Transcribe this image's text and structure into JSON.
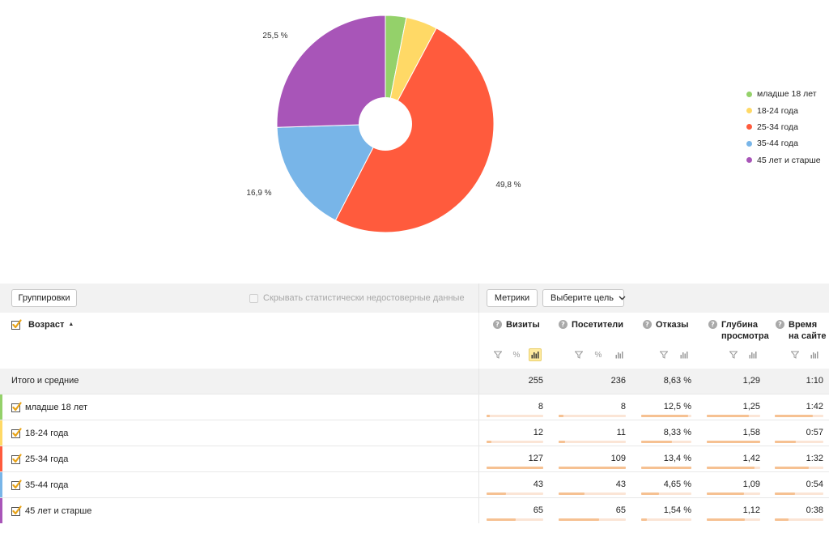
{
  "chart_data": {
    "type": "pie",
    "donut": true,
    "legend_position": "right",
    "categories": [
      "младше 18 лет",
      "18-24 года",
      "25-34 года",
      "35-44 года",
      "45 лет и старше"
    ],
    "values": [
      3.1,
      4.7,
      49.8,
      16.9,
      25.5
    ],
    "colors": [
      "#94d16a",
      "#ffd966",
      "#ff5b3d",
      "#78b5e8",
      "#a855b8"
    ],
    "slice_labels": [
      "",
      "",
      "49,8 %",
      "16,9 %",
      "25,5 %"
    ]
  },
  "toolbar": {
    "grouping_label": "Группировки",
    "hide_stats_label": "Скрывать статистически недостоверные данные",
    "metrics_label": "Метрики",
    "goal_label": "Выберите цель"
  },
  "table": {
    "dimension_label": "Возраст",
    "columns": [
      {
        "line1": "Визиты",
        "line2": ""
      },
      {
        "line1": "Посетители",
        "line2": ""
      },
      {
        "line1": "Отказы",
        "line2": ""
      },
      {
        "line1": "Глубина",
        "line2": "просмотра"
      },
      {
        "line1": "Время",
        "line2": "на сайте"
      }
    ],
    "total": {
      "label": "Итого и средние",
      "values": [
        "255",
        "236",
        "8,63 %",
        "1,29",
        "1:10"
      ]
    },
    "rows": [
      {
        "label": "младше 18 лет",
        "color": "#94d16a",
        "values": [
          "8",
          "8",
          "12,5 %",
          "1,25",
          "1:42"
        ],
        "bars": [
          0.06,
          0.07,
          0.93,
          0.79,
          0.78
        ]
      },
      {
        "label": "18-24 года",
        "color": "#ffd966",
        "values": [
          "12",
          "11",
          "8,33 %",
          "1,58",
          "0:57"
        ],
        "bars": [
          0.09,
          0.1,
          0.62,
          1.0,
          0.43
        ]
      },
      {
        "label": "25-34 года",
        "color": "#ff5b3d",
        "values": [
          "127",
          "109",
          "13,4 %",
          "1,42",
          "1:32"
        ],
        "bars": [
          1.0,
          1.0,
          1.0,
          0.9,
          0.7
        ]
      },
      {
        "label": "35-44 года",
        "color": "#78b5e8",
        "values": [
          "43",
          "43",
          "4,65 %",
          "1,09",
          "0:54"
        ],
        "bars": [
          0.34,
          0.39,
          0.35,
          0.69,
          0.41
        ]
      },
      {
        "label": "45 лет и старше",
        "color": "#a855b8",
        "values": [
          "65",
          "65",
          "1,54 %",
          "1,12",
          "0:38"
        ],
        "bars": [
          0.51,
          0.6,
          0.11,
          0.71,
          0.29
        ]
      }
    ]
  }
}
